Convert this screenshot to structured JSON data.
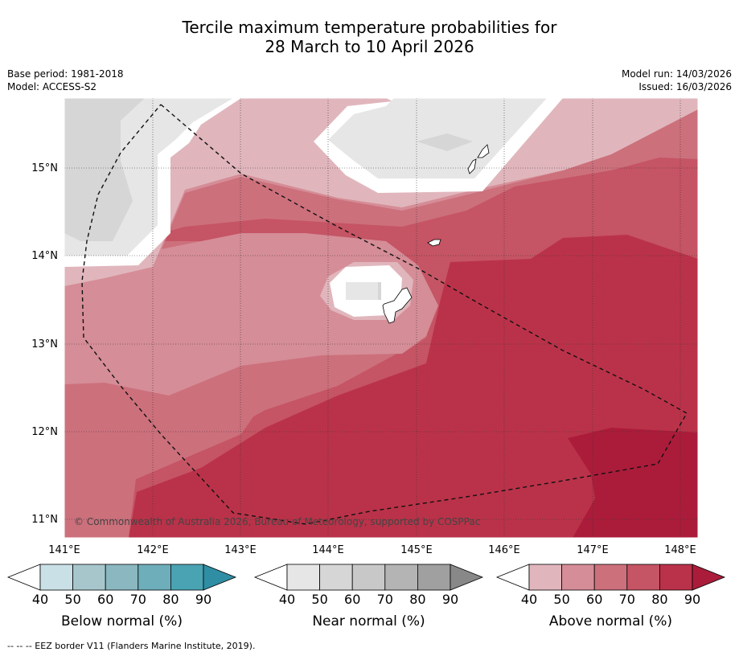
{
  "title_line1": "Tercile maximum temperature probabilities for",
  "title_line2": "28 March to 10 April 2026",
  "meta": {
    "base_period": "Base period: 1981-2018",
    "model": "Model: ACCESS-S2",
    "model_run": "Model run: 14/03/2026",
    "issued": "Issued: 16/03/2026"
  },
  "map": {
    "lat_labels": [
      "15°N",
      "14°N",
      "13°N",
      "12°N",
      "11°N"
    ],
    "lon_labels": [
      "141°E",
      "142°E",
      "143°E",
      "144°E",
      "145°E",
      "146°E",
      "147°E",
      "148°E"
    ],
    "credit": "© Commonwealth of Australia 2026, Bureau of Meteorology, supported by COSPPac"
  },
  "colorbars": [
    {
      "label": "Below normal (%)",
      "ticks": [
        "40",
        "50",
        "60",
        "70",
        "80",
        "90"
      ],
      "colors": [
        "#c8e0e6",
        "#a6c6cb",
        "#8ab7c0",
        "#6eaebb",
        "#4aa3b3",
        "#2f8ea3"
      ]
    },
    {
      "label": "Near normal (%)",
      "ticks": [
        "40",
        "50",
        "60",
        "70",
        "80",
        "90"
      ],
      "colors": [
        "#e6e6e6",
        "#d6d6d6",
        "#c8c8c8",
        "#b4b4b4",
        "#a0a0a0",
        "#888888"
      ]
    },
    {
      "label": "Above normal (%)",
      "ticks": [
        "40",
        "50",
        "60",
        "70",
        "80",
        "90"
      ],
      "colors": [
        "#e0b6bc",
        "#d58d97",
        "#cc707c",
        "#c55464",
        "#ba3249",
        "#ab1c3a"
      ]
    }
  ],
  "footnote": "--  --  -- EEZ border V11 (Flanders Marine Institute, 2019)."
}
